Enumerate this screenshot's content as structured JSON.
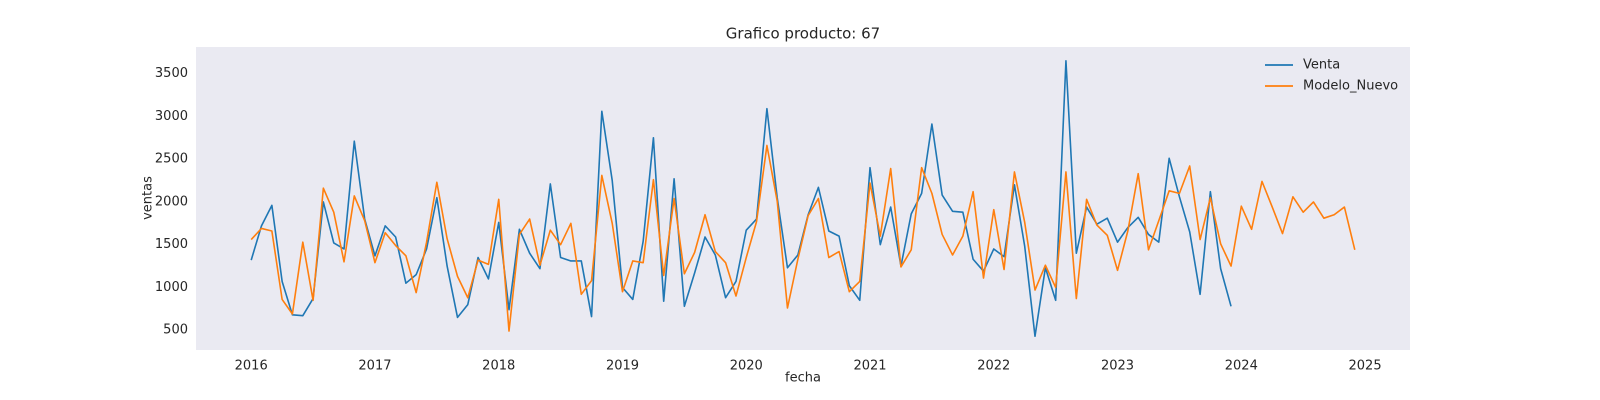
{
  "chart_data": {
    "type": "line",
    "title": "Grafico producto: 67",
    "xlabel": "fecha",
    "ylabel": "ventas",
    "x": [
      2016.0,
      2016.083,
      2016.167,
      2016.25,
      2016.333,
      2016.417,
      2016.5,
      2016.583,
      2016.667,
      2016.75,
      2016.833,
      2016.917,
      2017.0,
      2017.083,
      2017.167,
      2017.25,
      2017.333,
      2017.417,
      2017.5,
      2017.583,
      2017.667,
      2017.75,
      2017.833,
      2017.917,
      2018.0,
      2018.083,
      2018.167,
      2018.25,
      2018.333,
      2018.417,
      2018.5,
      2018.583,
      2018.667,
      2018.75,
      2018.833,
      2018.917,
      2019.0,
      2019.083,
      2019.167,
      2019.25,
      2019.333,
      2019.417,
      2019.5,
      2019.583,
      2019.667,
      2019.75,
      2019.833,
      2019.917,
      2020.0,
      2020.083,
      2020.167,
      2020.25,
      2020.333,
      2020.417,
      2020.5,
      2020.583,
      2020.667,
      2020.75,
      2020.833,
      2020.917,
      2021.0,
      2021.083,
      2021.167,
      2021.25,
      2021.333,
      2021.417,
      2021.5,
      2021.583,
      2021.667,
      2021.75,
      2021.833,
      2021.917,
      2022.0,
      2022.083,
      2022.167,
      2022.25,
      2022.333,
      2022.417,
      2022.5,
      2022.583,
      2022.667,
      2022.75,
      2022.833,
      2022.917,
      2023.0,
      2023.083,
      2023.167,
      2023.25,
      2023.333,
      2023.417,
      2023.5,
      2023.583,
      2023.667,
      2023.75,
      2023.833,
      2023.917,
      2024.0,
      2024.083,
      2024.167,
      2024.25,
      2024.333,
      2024.417,
      2024.5,
      2024.583,
      2024.667,
      2024.75,
      2024.833,
      2024.917
    ],
    "series": [
      {
        "name": "Venta",
        "color": "#1f77b4",
        "values": [
          1320,
          1720,
          1960,
          1070,
          680,
          670,
          870,
          2000,
          1520,
          1450,
          2710,
          1800,
          1370,
          1720,
          1590,
          1050,
          1150,
          1450,
          2050,
          1250,
          650,
          800,
          1350,
          1100,
          1760,
          740,
          1680,
          1400,
          1220,
          2210,
          1350,
          1310,
          1310,
          660,
          3060,
          2250,
          1000,
          860,
          1540,
          2750,
          840,
          2270,
          780,
          1170,
          1590,
          1380,
          880,
          1070,
          1670,
          1800,
          3090,
          2050,
          1230,
          1380,
          1850,
          2170,
          1660,
          1600,
          1020,
          850,
          2400,
          1500,
          1940,
          1250,
          1860,
          2100,
          2910,
          2080,
          1890,
          1880,
          1330,
          1190,
          1450,
          1360,
          2200,
          1480,
          430,
          1230,
          850,
          3650,
          1400,
          1940,
          1740,
          1810,
          1530,
          1700,
          1820,
          1620,
          1530,
          2510,
          2060,
          1650,
          920,
          2120,
          1220,
          780,
          null,
          null,
          null,
          null,
          null,
          null,
          null,
          null,
          null,
          null,
          null,
          null
        ]
      },
      {
        "name": "Modelo_Nuevo",
        "color": "#ff7f0e",
        "values": [
          1560,
          1690,
          1660,
          860,
          690,
          1530,
          850,
          2160,
          1880,
          1300,
          2070,
          1780,
          1290,
          1640,
          1490,
          1370,
          940,
          1530,
          2230,
          1570,
          1130,
          880,
          1320,
          1270,
          2030,
          490,
          1620,
          1800,
          1260,
          1670,
          1500,
          1750,
          920,
          1080,
          2310,
          1750,
          950,
          1310,
          1290,
          2260,
          1140,
          2040,
          1160,
          1410,
          1850,
          1420,
          1290,
          900,
          1350,
          1770,
          2660,
          2010,
          760,
          1330,
          1840,
          2040,
          1350,
          1420,
          950,
          1070,
          2220,
          1600,
          2390,
          1240,
          1440,
          2400,
          2100,
          1620,
          1380,
          1600,
          2120,
          1110,
          1910,
          1210,
          2350,
          1760,
          970,
          1260,
          1000,
          2350,
          870,
          2030,
          1730,
          1610,
          1200,
          1660,
          2330,
          1440,
          1780,
          2130,
          2100,
          2420,
          1560,
          2050,
          1510,
          1250,
          1950,
          1680,
          2240,
          1940,
          1630,
          2060,
          1880,
          2000,
          1810,
          1850,
          1940,
          1440
        ]
      }
    ],
    "xlim": [
      2015.554,
      2025.363
    ],
    "xticks": [
      2016,
      2017,
      2018,
      2019,
      2020,
      2021,
      2022,
      2023,
      2024,
      2025
    ],
    "ylim": [
      269,
      3811
    ],
    "yticks": [
      500,
      1000,
      1500,
      2000,
      2500,
      3000,
      3500
    ],
    "grid": false,
    "legend": "upper right"
  }
}
